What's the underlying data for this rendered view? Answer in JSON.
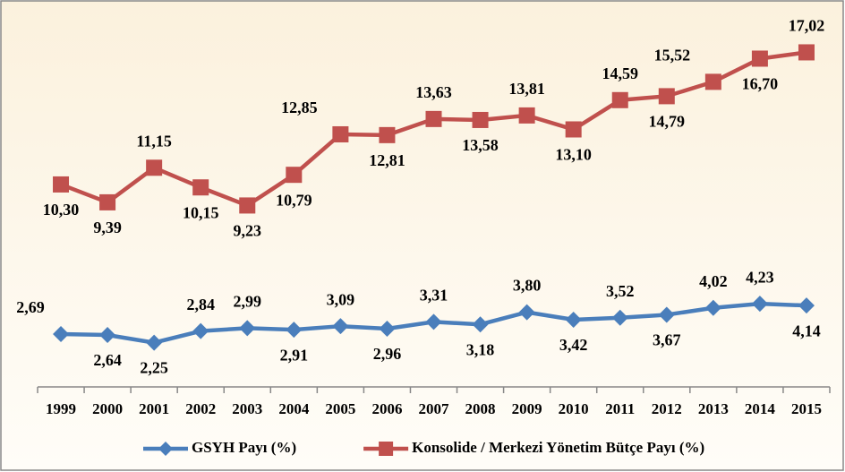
{
  "chart_data": {
    "type": "line",
    "categories": [
      "1999",
      "2000",
      "2001",
      "2002",
      "2003",
      "2004",
      "2005",
      "2006",
      "2007",
      "2008",
      "2009",
      "2010",
      "2011",
      "2012",
      "2013",
      "2014",
      "2015"
    ],
    "series": [
      {
        "name": "GSYH Payı (%)",
        "color": "#4a7ebb",
        "marker": "diamond",
        "values": [
          2.69,
          2.64,
          2.25,
          2.84,
          2.99,
          2.91,
          3.09,
          2.96,
          3.31,
          3.18,
          3.8,
          3.42,
          3.52,
          3.67,
          4.02,
          4.23,
          4.14
        ],
        "value_labels": [
          "2,69",
          "2,64",
          "2,25",
          "2,84",
          "2,99",
          "2,91",
          "3,09",
          "2,96",
          "3,31",
          "3,18",
          "3,80",
          "3,42",
          "3,52",
          "3,67",
          "4,02",
          "4,23",
          "4,14"
        ]
      },
      {
        "name": "Konsolide / Merkezi Yönetim Bütçe Payı (%)",
        "color": "#c0504d",
        "marker": "square",
        "values": [
          10.3,
          9.39,
          11.15,
          10.15,
          9.23,
          10.79,
          12.85,
          12.81,
          13.63,
          13.58,
          13.81,
          13.1,
          14.59,
          14.79,
          15.52,
          16.7,
          17.02
        ],
        "value_labels": [
          "10,30",
          "9,39",
          "11,15",
          "10,15",
          "9,23",
          "10,79",
          "12,85",
          "12,81",
          "13,63",
          "13,58",
          "13,81",
          "13,10",
          "14,59",
          "14,79",
          "15,52",
          "16,70",
          "17,02"
        ]
      }
    ],
    "ylim": [
      0,
      19
    ],
    "legend": "bottom"
  }
}
